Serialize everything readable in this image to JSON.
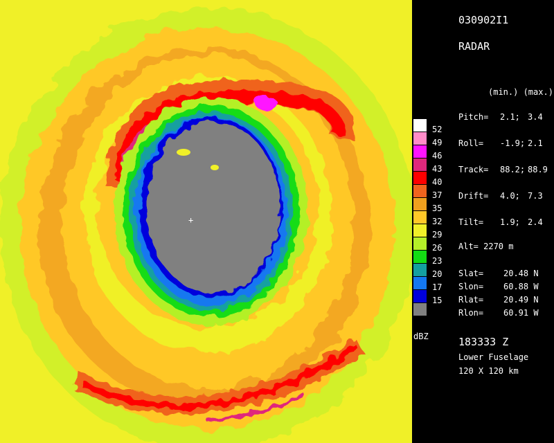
{
  "header": {
    "id": "030902I1",
    "product": "RADAR"
  },
  "minmax_header": "(min.) (max.)",
  "params": [
    {
      "label": "Pitch=",
      "min": "2.1;",
      "max": "3.4"
    },
    {
      "label": "Roll=",
      "min": "-1.9;",
      "max": "2.1"
    },
    {
      "label": "Track=",
      "min": "88.2;",
      "max": "88.9"
    },
    {
      "label": "Drift=",
      "min": "4.0;",
      "max": "7.3"
    },
    {
      "label": "Tilt=",
      "min": "1.9;",
      "max": "2.4"
    }
  ],
  "alt": "Alt= 2270 m",
  "coords": [
    {
      "label": "Slat=",
      "value": "20.48 N"
    },
    {
      "label": "Slon=",
      "value": "60.88 W"
    },
    {
      "label": "Rlat=",
      "value": "20.49 N"
    },
    {
      "label": "Rlon=",
      "value": "60.91 W"
    }
  ],
  "time": "183333 Z",
  "antenna": "Lower Fuselage",
  "range": "120 X 120 km",
  "legend": {
    "unit": "dBZ",
    "levels": [
      {
        "label": "52",
        "color": "#ffffff"
      },
      {
        "label": "49",
        "color": "#ff8cc8"
      },
      {
        "label": "46",
        "color": "#ff14ff"
      },
      {
        "label": "43",
        "color": "#e0287c"
      },
      {
        "label": "40",
        "color": "#ff0000"
      },
      {
        "label": "37",
        "color": "#f0641e"
      },
      {
        "label": "35",
        "color": "#f0a01e"
      },
      {
        "label": "32",
        "color": "#ffc828"
      },
      {
        "label": "29",
        "color": "#f0f028"
      },
      {
        "label": "26",
        "color": "#b4f028"
      },
      {
        "label": "23",
        "color": "#14dc14"
      },
      {
        "label": "20",
        "color": "#14a0a0"
      },
      {
        "label": "17",
        "color": "#1478f0"
      },
      {
        "label": "15",
        "color": "#0000dc"
      },
      {
        "label": "",
        "color": "#808080"
      }
    ]
  }
}
